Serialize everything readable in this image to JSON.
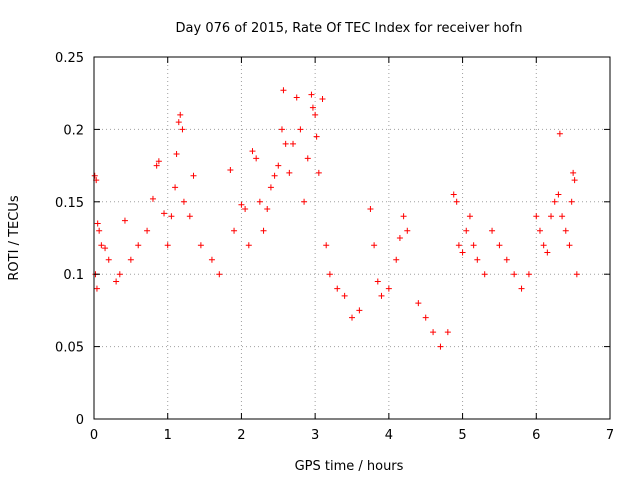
{
  "chart_data": {
    "type": "scatter",
    "title": "Day 076 of 2015, Rate Of TEC Index for receiver hofn",
    "xlabel": "GPS time / hours",
    "ylabel": "ROTI / TECUs",
    "xlim": [
      0,
      7
    ],
    "ylim": [
      0,
      0.25
    ],
    "xticks": [
      0,
      1,
      2,
      3,
      4,
      5,
      6,
      7
    ],
    "xtick_labels": [
      "0",
      "1",
      "2",
      "3",
      "4",
      "5",
      "6",
      "7"
    ],
    "yticks": [
      0,
      0.05,
      0.1,
      0.15,
      0.2,
      0.25
    ],
    "ytick_labels": [
      "0",
      "0.05",
      "0.1",
      "0.15",
      "0.2",
      "0.25"
    ],
    "grid": true,
    "marker": "+",
    "color": "#ff0000",
    "series": [
      {
        "name": "ROTI",
        "points": [
          [
            0.01,
            0.168
          ],
          [
            0.03,
            0.165
          ],
          [
            0.05,
            0.135
          ],
          [
            0.07,
            0.13
          ],
          [
            0.1,
            0.12
          ],
          [
            0.02,
            0.1
          ],
          [
            0.04,
            0.09
          ],
          [
            0.15,
            0.118
          ],
          [
            0.2,
            0.11
          ],
          [
            0.3,
            0.095
          ],
          [
            0.35,
            0.1
          ],
          [
            0.42,
            0.137
          ],
          [
            0.5,
            0.11
          ],
          [
            0.6,
            0.12
          ],
          [
            0.72,
            0.13
          ],
          [
            0.8,
            0.152
          ],
          [
            0.85,
            0.175
          ],
          [
            0.88,
            0.178
          ],
          [
            0.95,
            0.142
          ],
          [
            1.0,
            0.12
          ],
          [
            1.05,
            0.14
          ],
          [
            1.1,
            0.16
          ],
          [
            1.12,
            0.183
          ],
          [
            1.15,
            0.205
          ],
          [
            1.17,
            0.21
          ],
          [
            1.2,
            0.2
          ],
          [
            1.22,
            0.15
          ],
          [
            1.3,
            0.14
          ],
          [
            1.35,
            0.168
          ],
          [
            1.45,
            0.12
          ],
          [
            1.6,
            0.11
          ],
          [
            1.7,
            0.1
          ],
          [
            1.85,
            0.172
          ],
          [
            1.9,
            0.13
          ],
          [
            2.0,
            0.148
          ],
          [
            2.05,
            0.145
          ],
          [
            2.1,
            0.12
          ],
          [
            2.15,
            0.185
          ],
          [
            2.2,
            0.18
          ],
          [
            2.25,
            0.15
          ],
          [
            2.3,
            0.13
          ],
          [
            2.35,
            0.145
          ],
          [
            2.4,
            0.16
          ],
          [
            2.45,
            0.168
          ],
          [
            2.5,
            0.175
          ],
          [
            2.55,
            0.2
          ],
          [
            2.57,
            0.227
          ],
          [
            2.6,
            0.19
          ],
          [
            2.65,
            0.17
          ],
          [
            2.7,
            0.19
          ],
          [
            2.75,
            0.222
          ],
          [
            2.8,
            0.2
          ],
          [
            2.85,
            0.15
          ],
          [
            2.9,
            0.18
          ],
          [
            2.95,
            0.224
          ],
          [
            2.97,
            0.215
          ],
          [
            3.0,
            0.21
          ],
          [
            3.02,
            0.195
          ],
          [
            3.05,
            0.17
          ],
          [
            3.1,
            0.221
          ],
          [
            3.15,
            0.12
          ],
          [
            3.2,
            0.1
          ],
          [
            3.3,
            0.09
          ],
          [
            3.4,
            0.085
          ],
          [
            3.5,
            0.07
          ],
          [
            3.6,
            0.075
          ],
          [
            3.75,
            0.145
          ],
          [
            3.8,
            0.12
          ],
          [
            3.85,
            0.095
          ],
          [
            3.9,
            0.085
          ],
          [
            4.0,
            0.09
          ],
          [
            4.1,
            0.11
          ],
          [
            4.15,
            0.125
          ],
          [
            4.2,
            0.14
          ],
          [
            4.25,
            0.13
          ],
          [
            4.4,
            0.08
          ],
          [
            4.5,
            0.07
          ],
          [
            4.6,
            0.06
          ],
          [
            4.7,
            0.05
          ],
          [
            4.8,
            0.06
          ],
          [
            4.88,
            0.155
          ],
          [
            4.92,
            0.15
          ],
          [
            4.95,
            0.12
          ],
          [
            5.0,
            0.115
          ],
          [
            5.05,
            0.13
          ],
          [
            5.1,
            0.14
          ],
          [
            5.15,
            0.12
          ],
          [
            5.2,
            0.11
          ],
          [
            5.3,
            0.1
          ],
          [
            5.4,
            0.13
          ],
          [
            5.5,
            0.12
          ],
          [
            5.6,
            0.11
          ],
          [
            5.7,
            0.1
          ],
          [
            5.8,
            0.09
          ],
          [
            5.9,
            0.1
          ],
          [
            6.0,
            0.14
          ],
          [
            6.05,
            0.13
          ],
          [
            6.1,
            0.12
          ],
          [
            6.15,
            0.115
          ],
          [
            6.2,
            0.14
          ],
          [
            6.25,
            0.15
          ],
          [
            6.3,
            0.155
          ],
          [
            6.32,
            0.197
          ],
          [
            6.35,
            0.14
          ],
          [
            6.4,
            0.13
          ],
          [
            6.45,
            0.12
          ],
          [
            6.5,
            0.17
          ],
          [
            6.52,
            0.165
          ],
          [
            6.48,
            0.15
          ],
          [
            6.55,
            0.1
          ]
        ]
      }
    ]
  }
}
